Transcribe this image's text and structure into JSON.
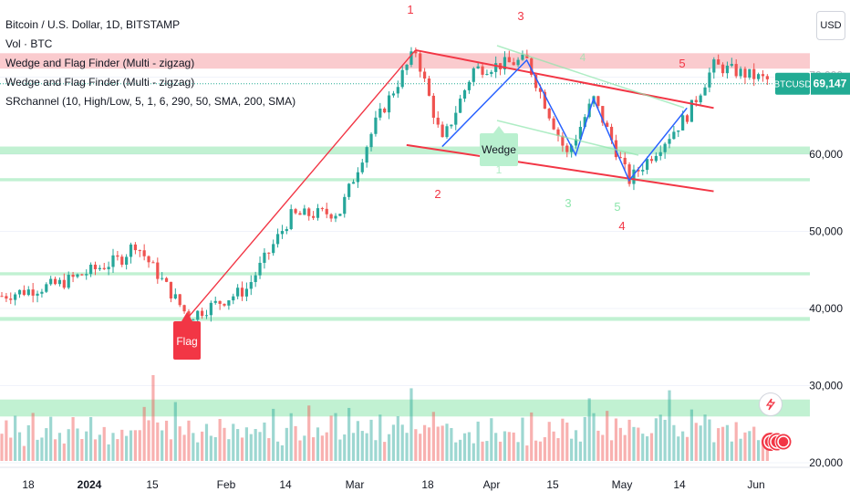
{
  "legend": {
    "symbol_line": "Bitcoin / U.S. Dollar, 1D, BITSTAMP",
    "indicators": [
      "Vol · BTC",
      "Wedge and Flag Finder (Multi - zigzag)",
      "Wedge and Flag Finder (Multi - zigzag)",
      "SRchannel (10, High/Low, 5, 1, 6, 290, 50, SMA, 200, SMA)"
    ]
  },
  "currency_button": "USD",
  "price_tag": {
    "symbol": "BTCUSD",
    "value": "69,147",
    "partial_value": "70,000"
  },
  "annotations": {
    "flag_label": "Flag",
    "wedge_label": "Wedge",
    "pivots_top": [
      "1",
      "3",
      "5"
    ],
    "pivots_bottom": [
      "2",
      "3",
      "4",
      "5"
    ],
    "pivots_faint": [
      "4",
      "1"
    ]
  },
  "colors": {
    "up": "#26a69a",
    "down": "#ef5350",
    "sr_green": "#8ee6ad",
    "sr_red": "#f7a8ad",
    "wedge_red": "#f23645",
    "zigzag_blue": "#2962ff",
    "price_tag": "#22ab94"
  },
  "chart_data": {
    "type": "candlestick",
    "title": "Bitcoin / U.S. Dollar, 1D, BITSTAMP",
    "y_axis": {
      "side": "right",
      "ticks": [
        20000,
        30000,
        40000,
        50000,
        60000,
        70000
      ],
      "tick_labels": [
        "20,000",
        "30,000",
        "40,000",
        "50,000",
        "60,000",
        "70,000"
      ]
    },
    "x_axis": {
      "tick_labels": [
        "18",
        "2024",
        "15",
        "Feb",
        "14",
        "Mar",
        "18",
        "Apr",
        "15",
        "May",
        "14",
        "Jun"
      ],
      "bold_labels": [
        "2024"
      ]
    },
    "last_price": 69147,
    "price_path": [
      {
        "date": "2023-12-11",
        "price": 41500
      },
      {
        "date": "2023-12-25",
        "price": 43200
      },
      {
        "date": "2024-01-08",
        "price": 46500
      },
      {
        "date": "2024-01-11",
        "price": 48500
      },
      {
        "date": "2024-01-23",
        "price": 38900
      },
      {
        "date": "2024-02-05",
        "price": 42500
      },
      {
        "date": "2024-02-15",
        "price": 52000
      },
      {
        "date": "2024-02-26",
        "price": 52500
      },
      {
        "date": "2024-03-05",
        "price": 64000
      },
      {
        "date": "2024-03-14",
        "price": 73500
      },
      {
        "date": "2024-03-20",
        "price": 61500
      },
      {
        "date": "2024-03-27",
        "price": 71000
      },
      {
        "date": "2024-04-08",
        "price": 72200
      },
      {
        "date": "2024-04-17",
        "price": 59900
      },
      {
        "date": "2024-04-23",
        "price": 67200
      },
      {
        "date": "2024-05-01",
        "price": 56600
      },
      {
        "date": "2024-05-14",
        "price": 65000
      },
      {
        "date": "2024-05-20",
        "price": 71500
      },
      {
        "date": "2024-06-04",
        "price": 69147
      }
    ],
    "sr_zones": [
      {
        "from": 71100,
        "to": 73100,
        "color": "red"
      },
      {
        "from": 60000,
        "to": 61000,
        "color": "green"
      },
      {
        "from": 56500,
        "to": 56900,
        "color": "green"
      },
      {
        "from": 44300,
        "to": 44700,
        "color": "green"
      },
      {
        "from": 38400,
        "to": 38900,
        "color": "green"
      },
      {
        "from": 26000,
        "to": 28200,
        "color": "green"
      }
    ],
    "wedge": {
      "upper": [
        {
          "date": "2024-03-14",
          "price": 73500
        },
        {
          "date": "2024-05-20",
          "price": 66000
        }
      ],
      "lower": [
        {
          "date": "2024-03-12",
          "price": 61200
        },
        {
          "date": "2024-05-20",
          "price": 55200
        }
      ],
      "zigzag": [
        {
          "date": "2024-03-20",
          "price": 61000
        },
        {
          "date": "2024-04-08",
          "price": 72200
        },
        {
          "date": "2024-04-19",
          "price": 59900
        },
        {
          "date": "2024-04-23",
          "price": 67200
        },
        {
          "date": "2024-05-01",
          "price": 56600
        },
        {
          "date": "2024-05-14",
          "price": 66000
        }
      ]
    },
    "flag_pole": [
      {
        "date": "2024-01-23",
        "price": 38900
      },
      {
        "date": "2024-03-14",
        "price": 73500
      }
    ],
    "volume": {
      "series": "Vol · BTC",
      "relative_heights": [
        0.35,
        0.5,
        0.3,
        0.6,
        0.4,
        0.3,
        0.45,
        0.55,
        0.4,
        0.35,
        0.5,
        0.7,
        0.4,
        0.45,
        0.3,
        0.55,
        0.8,
        0.6,
        0.4,
        0.5,
        0.65,
        0.35,
        0.5,
        0.45,
        0.3,
        0.55,
        0.4,
        0.6,
        0.35,
        0.5,
        0.45,
        0.6,
        0.75,
        0.5,
        1.0,
        0.6,
        0.45,
        0.55,
        0.4,
        0.7,
        0.5,
        0.45,
        0.6,
        0.55,
        0.35,
        0.4,
        0.5,
        0.45,
        0.3,
        0.55,
        0.4,
        0.35,
        0.5,
        0.45,
        0.3,
        0.4,
        0.35,
        0.5
      ]
    }
  }
}
